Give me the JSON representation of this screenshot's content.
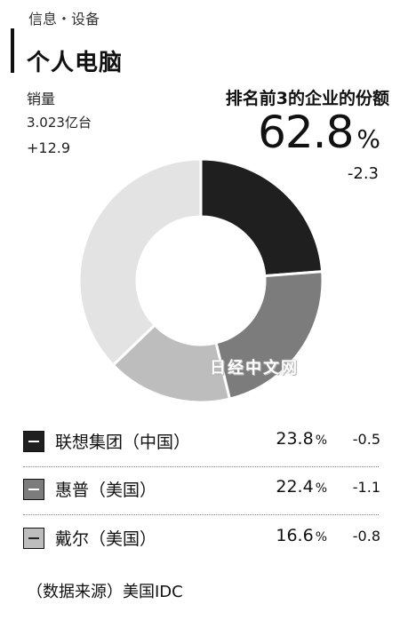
{
  "header": {
    "category": "信息・设备",
    "title": "个人电脑"
  },
  "sales": {
    "label": "销量",
    "value": "3.023亿台",
    "change": "+12.9"
  },
  "top3": {
    "label": "排名前3的企业的份额",
    "value": "62.8",
    "unit": "%",
    "change": "-2.3"
  },
  "watermark": "日经中文网",
  "source": "（数据来源）美国IDC",
  "chart_data": {
    "type": "pie",
    "donut": true,
    "categories": [
      "联想集团（中国）",
      "惠普（美国）",
      "戴尔（美国）",
      ""
    ],
    "values": [
      23.8,
      22.4,
      16.6,
      37.2
    ],
    "value_unit": "%",
    "changes": [
      "-0.5",
      "-1.1",
      "-0.8",
      ""
    ],
    "colors": [
      "#1f1f1f",
      "#7c7c7c",
      "#bdbdbd",
      "#e3e3e3"
    ]
  }
}
